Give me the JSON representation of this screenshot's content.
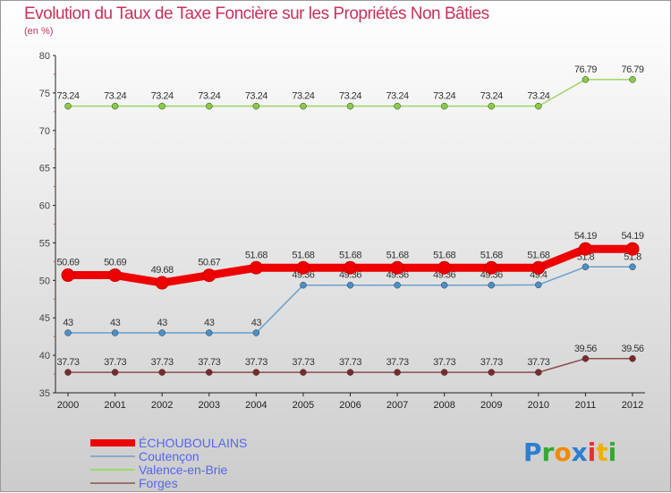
{
  "chart_data": {
    "type": "line",
    "title": "Evolution du Taux de Taxe Foncière sur les Propriétés Non Bâties",
    "subtitle": "(en %)",
    "xlabel": "",
    "ylabel": "",
    "x": [
      "2000",
      "2001",
      "2002",
      "2003",
      "2004",
      "2005",
      "2006",
      "2007",
      "2008",
      "2009",
      "2010",
      "2011",
      "2012"
    ],
    "ylim": [
      35,
      80
    ],
    "yticks": [
      "35",
      "40",
      "45",
      "50",
      "55",
      "60",
      "65",
      "70",
      "75",
      "80"
    ],
    "legend_position": "bottom-left",
    "series": [
      {
        "name": "Valence-en-Brie",
        "color": "#88cc44",
        "values": [
          73.24,
          73.24,
          73.24,
          73.24,
          73.24,
          73.24,
          73.24,
          73.24,
          73.24,
          73.24,
          73.24,
          76.79,
          76.79
        ],
        "labels": [
          "73.24",
          "73.24",
          "73.24",
          "73.24",
          "73.24",
          "73.24",
          "73.24",
          "73.24",
          "73.24",
          "73.24",
          "73.24",
          "76.79",
          "76.79"
        ]
      },
      {
        "name": "Coutençon",
        "color": "#4a90c8",
        "values": [
          43,
          43,
          43,
          43,
          43,
          49.36,
          49.36,
          49.36,
          49.36,
          49.36,
          49.4,
          51.8,
          51.8
        ],
        "labels": [
          "43",
          "43",
          "43",
          "43",
          "43",
          "49.36",
          "49.36",
          "49.36",
          "49.36",
          "49.36",
          "49.4",
          "51.8",
          "51.8"
        ]
      },
      {
        "name": "Forges",
        "color": "#7a2a2a",
        "values": [
          37.73,
          37.73,
          37.73,
          37.73,
          37.73,
          37.73,
          37.73,
          37.73,
          37.73,
          37.73,
          37.73,
          39.56,
          39.56
        ],
        "labels": [
          "37.73",
          "37.73",
          "37.73",
          "37.73",
          "37.73",
          "37.73",
          "37.73",
          "37.73",
          "37.73",
          "37.73",
          "37.73",
          "39.56",
          "39.56"
        ]
      },
      {
        "name": "ÉCHOUBOULAINS",
        "color": "#ee0000",
        "values": [
          50.69,
          50.69,
          49.68,
          50.67,
          51.68,
          51.68,
          51.68,
          51.68,
          51.68,
          51.68,
          51.68,
          54.19,
          54.19
        ],
        "labels": [
          "50.69",
          "50.69",
          "49.68",
          "50.67",
          "51.68",
          "51.68",
          "51.68",
          "51.68",
          "51.68",
          "51.68",
          "51.68",
          "54.19",
          "54.19"
        ]
      }
    ],
    "legend": [
      "ÉCHOUBOULAINS",
      "Coutençon",
      "Valence-en-Brie",
      "Forges"
    ]
  },
  "logo": {
    "text": "Proxiti",
    "letters": [
      "P",
      "r",
      "o",
      "x",
      "i",
      "t",
      "i"
    ],
    "colors": [
      "#2a7fd0",
      "#33aa33",
      "#f08a00",
      "#2a7fd0",
      "#e83030",
      "#f0b000",
      "#33aa33"
    ]
  }
}
